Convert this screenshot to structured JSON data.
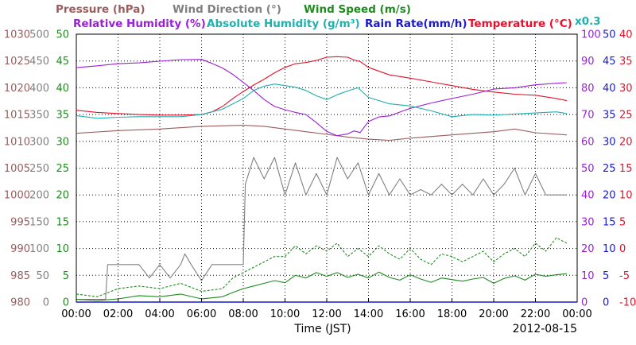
{
  "chart_data": {
    "type": "line",
    "date": "2012-08-15",
    "xlabel": "Time (JST)",
    "x_ticks": [
      "00:00",
      "02:00",
      "04:00",
      "06:00",
      "08:00",
      "10:00",
      "12:00",
      "14:00",
      "16:00",
      "18:00",
      "20:00",
      "22:00",
      "00:00"
    ],
    "xlim_hours": [
      0,
      24
    ],
    "grid": true,
    "legend_placement": "top",
    "series_text": {
      "pressure": "Pressure (hPa)",
      "wind_direction": "Wind Direction (°)",
      "wind_speed": "Wind Speed (m/s)",
      "relative_humidity": "Relative Humidity (%)",
      "absolute_humidity": "Absolute Humidity (g/m³)",
      "absolute_humidity_scale": "x0.3",
      "rain_rate": "Rain Rate(mm/h)",
      "temperature": "Temperature (°C)"
    },
    "colors": {
      "pressure": "#9a5c5c",
      "wind_direction": "#808080",
      "wind_speed": "#1e8c1e",
      "relative_humidity": "#9b1fd6",
      "absolute_humidity": "#1fb0b0",
      "rain_rate": "#1a1acc",
      "temperature": "#e8102a"
    },
    "axes": {
      "pressure": {
        "min": 980,
        "max": 1030,
        "ticks": [
          980,
          985,
          990,
          995,
          1000,
          1005,
          1010,
          1015,
          1020,
          1025,
          1030
        ]
      },
      "wind_direction": {
        "min": 0,
        "max": 500,
        "ticks": [
          0,
          50,
          100,
          150,
          200,
          250,
          300,
          350,
          400,
          450,
          500
        ]
      },
      "wind_speed": {
        "min": 0,
        "max": 50,
        "ticks": [
          0,
          5,
          10,
          15,
          20,
          25,
          30,
          35,
          40,
          45,
          50
        ]
      },
      "relative_humidity": {
        "min": 0,
        "max": 100,
        "ticks": [
          0,
          10,
          20,
          30,
          40,
          50,
          60,
          70,
          80,
          90,
          100
        ]
      },
      "rain_rate": {
        "min": 0,
        "max": 50,
        "ticks": [
          0,
          5,
          10,
          15,
          20,
          25,
          30,
          35,
          40,
          45,
          50
        ]
      },
      "temperature": {
        "min": -10,
        "max": 40,
        "ticks": [
          -10,
          -5,
          0,
          5,
          10,
          15,
          20,
          25,
          30,
          35,
          40
        ]
      }
    },
    "series": [
      {
        "key": "pressure",
        "axis": "pressure",
        "x": [
          0,
          2,
          4,
          6,
          8,
          9,
          10,
          11,
          12,
          13,
          14,
          15,
          16,
          18,
          20,
          21,
          22,
          23.5
        ],
        "y": [
          1011.5,
          1012,
          1012.3,
          1012.8,
          1013,
          1012.8,
          1012.3,
          1011.8,
          1011.3,
          1010.8,
          1010.4,
          1010.2,
          1010.6,
          1011.2,
          1011.8,
          1012.3,
          1011.6,
          1011.2
        ]
      },
      {
        "key": "temperature",
        "axis": "temperature",
        "x": [
          0,
          1,
          2,
          3,
          4,
          5,
          6,
          6.5,
          7,
          7.5,
          8,
          8.5,
          9,
          9.5,
          10,
          10.5,
          11,
          11.5,
          12,
          12.5,
          13,
          13.3,
          13.6,
          14,
          15,
          16,
          17,
          18,
          19,
          20,
          21,
          22,
          23,
          23.5
        ],
        "y": [
          25.8,
          25.4,
          25.2,
          25.0,
          24.9,
          24.9,
          25.0,
          25.5,
          26.5,
          28,
          29.3,
          30.5,
          31.6,
          32.8,
          33.8,
          34.5,
          34.7,
          35.1,
          35.7,
          35.8,
          35.7,
          35.2,
          34.9,
          33.8,
          32.4,
          31.8,
          31.1,
          30.4,
          29.7,
          29.2,
          28.8,
          28.6,
          28.0,
          27.6
        ]
      },
      {
        "key": "relative_humidity",
        "axis": "relative_humidity",
        "x": [
          0,
          1,
          2,
          3,
          4,
          5,
          6,
          6.5,
          7,
          7.5,
          8,
          8.5,
          9,
          9.5,
          10,
          10.5,
          11,
          11.5,
          12,
          12.5,
          13,
          13.3,
          13.6,
          14,
          14.5,
          15,
          16,
          17,
          18,
          19,
          20,
          21,
          22,
          23,
          23.5
        ],
        "y": [
          87.5,
          88.2,
          89,
          89.3,
          89.9,
          90.5,
          90.6,
          89.1,
          87.4,
          85,
          82,
          79,
          75.6,
          73,
          71.8,
          70.8,
          70,
          67,
          63.7,
          62.1,
          62.8,
          63.9,
          63.3,
          67.4,
          69.1,
          69.5,
          72.3,
          74.3,
          76,
          77.6,
          79.5,
          80,
          81.1,
          81.7,
          81.9
        ]
      },
      {
        "key": "absolute_humidity",
        "axis": "wind_speed",
        "x": [
          0,
          1,
          2,
          3,
          4,
          5,
          6,
          7,
          7.5,
          8,
          8.5,
          9,
          9.5,
          10,
          10.5,
          11,
          11.5,
          12,
          12.5,
          13,
          13.5,
          14,
          15,
          16,
          17,
          18,
          19,
          20,
          21,
          22,
          23,
          23.5
        ],
        "y": [
          34.8,
          34.3,
          34.5,
          34.6,
          34.6,
          34.6,
          35,
          36,
          37,
          38,
          39.5,
          40.3,
          40.7,
          40.4,
          40.1,
          39.5,
          38.5,
          37.8,
          38.7,
          39.4,
          40,
          38.2,
          37,
          36.6,
          35.7,
          34.6,
          35,
          34.9,
          35.1,
          35.3,
          35.5,
          35.2
        ]
      },
      {
        "key": "wind_direction",
        "axis": "wind_direction",
        "x": [
          0,
          1.4,
          1.5,
          2,
          3,
          3.5,
          4,
          4.5,
          5,
          5.2,
          5.5,
          6,
          6.5,
          7,
          7.5,
          8,
          8.1,
          8.5,
          9,
          9.5,
          10,
          10.5,
          11,
          11.5,
          12,
          12.5,
          13,
          13.5,
          14,
          14.5,
          15,
          15.5,
          16,
          16.5,
          17,
          17.5,
          18,
          18.5,
          19,
          19.5,
          20,
          20.5,
          21,
          21.5,
          22,
          22.5,
          23,
          23.5
        ],
        "y": [
          5,
          5,
          70,
          70,
          70,
          45,
          70,
          45,
          70,
          90,
          70,
          40,
          70,
          70,
          70,
          70,
          220,
          270,
          230,
          270,
          200,
          260,
          200,
          240,
          200,
          270,
          230,
          260,
          200,
          240,
          200,
          230,
          200,
          210,
          200,
          220,
          200,
          220,
          200,
          230,
          200,
          220,
          250,
          200,
          240,
          200,
          200,
          200
        ]
      },
      {
        "key": "wind_speed",
        "axis": "wind_speed",
        "x": [
          0,
          1,
          2,
          3,
          4,
          5,
          6,
          7,
          7.5,
          8,
          8.5,
          9,
          9.5,
          10,
          10.5,
          11,
          11.5,
          12,
          12.5,
          13,
          13.5,
          14,
          14.5,
          15,
          15.5,
          16,
          16.5,
          17,
          17.5,
          18,
          18.5,
          19,
          19.5,
          20,
          20.5,
          21,
          21.5,
          22,
          22.5,
          23,
          23.5
        ],
        "y": [
          0.5,
          0.3,
          0.6,
          1.2,
          1,
          1.5,
          0.6,
          1,
          1.8,
          2.5,
          3,
          3.5,
          4,
          3.6,
          5,
          4.5,
          5.5,
          4.8,
          5.5,
          4.6,
          5.2,
          4.5,
          5.6,
          4.6,
          4.1,
          5.1,
          4.3,
          3.7,
          4.5,
          4.2,
          3.9,
          4.3,
          4.6,
          3.5,
          4.4,
          4.9,
          4.1,
          5.2,
          4.8,
          5.1,
          5.3
        ]
      },
      {
        "key": "wind_speed_gust",
        "axis": "wind_speed",
        "dash": true,
        "x": [
          0,
          1,
          2,
          3,
          4,
          5,
          6,
          7,
          7.5,
          8,
          8.5,
          9,
          9.5,
          10,
          10.5,
          11,
          11.5,
          12,
          12.5,
          13,
          13.5,
          14,
          14.5,
          15,
          15.5,
          16,
          16.5,
          17,
          17.5,
          18,
          18.5,
          19,
          19.5,
          20,
          20.5,
          21,
          21.5,
          22,
          22.5,
          23,
          23.5
        ],
        "y": [
          1.5,
          1,
          2.5,
          3,
          2.5,
          3.5,
          2,
          2.5,
          4.5,
          5.5,
          6.5,
          7.5,
          8.5,
          8.5,
          10.5,
          9,
          10.5,
          9.5,
          11,
          8.5,
          10,
          8.5,
          10.5,
          9,
          8,
          10,
          8,
          7,
          9,
          8.5,
          7.5,
          8.5,
          9.5,
          7.5,
          9,
          10,
          8.5,
          11,
          9.5,
          12,
          11
        ]
      },
      {
        "key": "rain_rate",
        "axis": "rain_rate",
        "x": [
          0,
          24
        ],
        "y": [
          0,
          0
        ]
      }
    ]
  }
}
